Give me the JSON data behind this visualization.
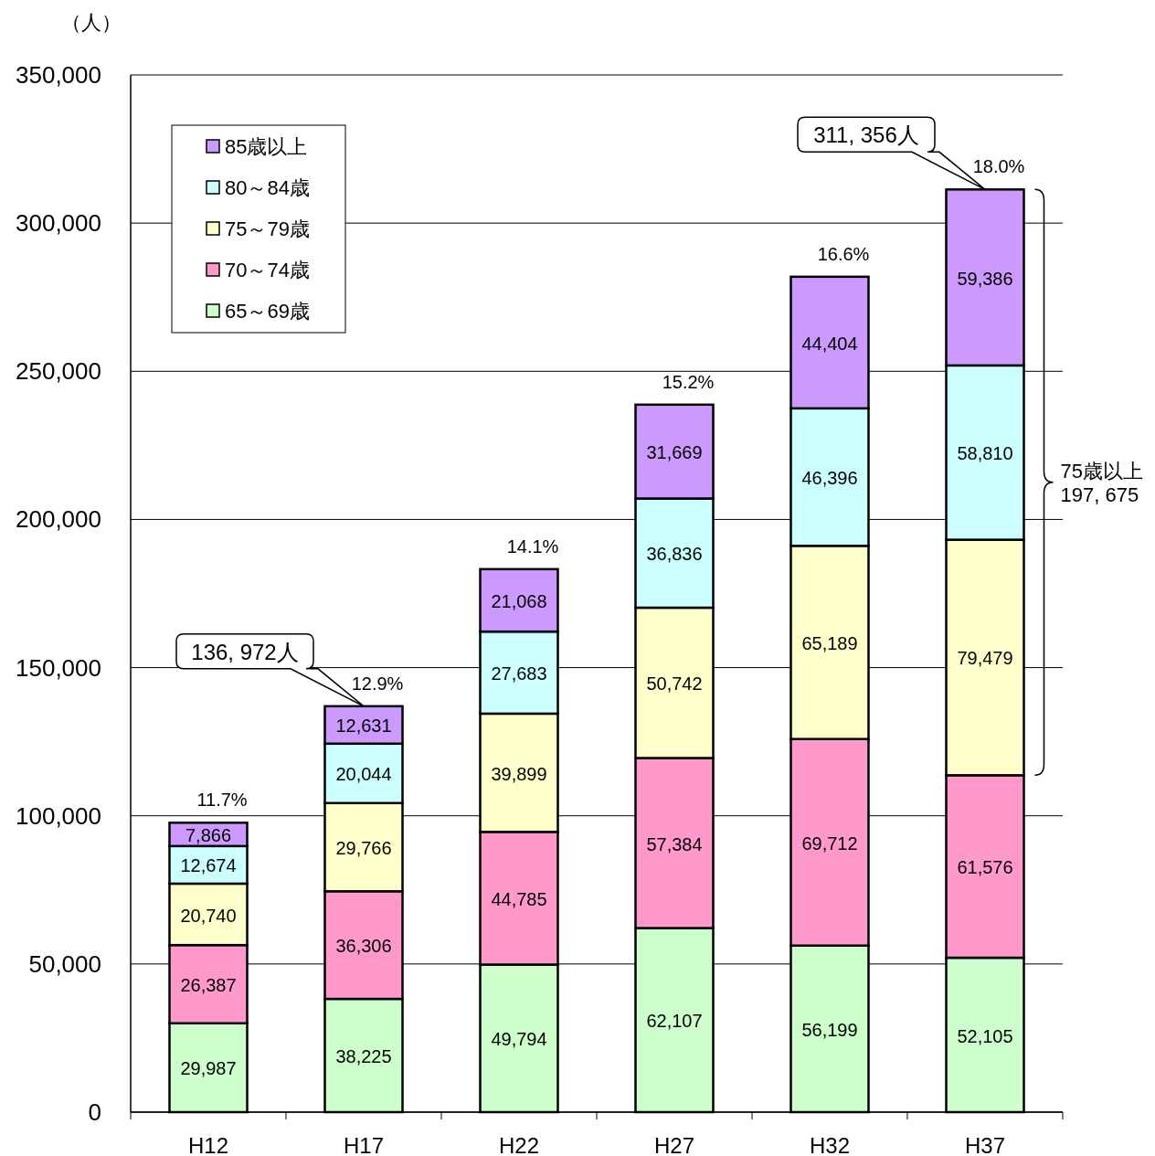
{
  "chart_data": {
    "type": "bar",
    "stacked": true,
    "ylabel": "（人）",
    "categories": [
      "H12",
      "H17",
      "H22",
      "H27",
      "H32",
      "H37"
    ],
    "series": [
      {
        "name": "65～69歳",
        "color": "#ccffcc",
        "values": [
          29987,
          38225,
          49794,
          62107,
          56199,
          52105
        ],
        "value_labels": [
          "29,987",
          "38,225",
          "49,794",
          "62,107",
          "56,199",
          "52,105"
        ]
      },
      {
        "name": "70～74歳",
        "color": "#ff99cc",
        "values": [
          26387,
          36306,
          44785,
          57384,
          69712,
          61576
        ],
        "value_labels": [
          "26,387",
          "36,306",
          "44,785",
          "57,384",
          "69,712",
          "61,576"
        ]
      },
      {
        "name": "75～79歳",
        "color": "#ffffcc",
        "values": [
          20740,
          29766,
          39899,
          50742,
          65189,
          79479
        ],
        "value_labels": [
          "20,740",
          "29,766",
          "39,899",
          "50,742",
          "65,189",
          "79,479"
        ]
      },
      {
        "name": "80～84歳",
        "color": "#ccffff",
        "values": [
          12674,
          20044,
          27683,
          36836,
          46396,
          58810
        ],
        "value_labels": [
          "12,674",
          "20,044",
          "27,683",
          "36,836",
          "46,396",
          "58,810"
        ]
      },
      {
        "name": "85歳以上",
        "color": "#cc99ff",
        "values": [
          7866,
          12631,
          21068,
          31669,
          44404,
          59386
        ],
        "value_labels": [
          "7,866",
          "12,631",
          "21,068",
          "31,669",
          "44,404",
          "59,386"
        ]
      }
    ],
    "ylim": [
      0,
      350000
    ],
    "yticks": [
      {
        "value": 0,
        "label": "0"
      },
      {
        "value": 50000,
        "label": "50,000"
      },
      {
        "value": 100000,
        "label": "100,000"
      },
      {
        "value": 150000,
        "label": "150,000"
      },
      {
        "value": 200000,
        "label": "200,000"
      },
      {
        "value": 250000,
        "label": "250,000"
      },
      {
        "value": 300000,
        "label": "300,000"
      },
      {
        "value": 350000,
        "label": "350,000"
      }
    ],
    "grid": "y",
    "legend": "top left",
    "annotations": [
      {
        "text": "11.7%",
        "x": "H12",
        "y": 97654
      },
      {
        "text": "12.9%",
        "x": "H17",
        "y": 136972
      },
      {
        "text": "14.1%",
        "x": "H22",
        "y": 183229
      },
      {
        "text": "15.2%",
        "x": "H27",
        "y": 238738
      },
      {
        "text": "16.6%",
        "x": "H32",
        "y": 281900
      },
      {
        "text": "18.0%",
        "x": "H37",
        "y": 311356
      },
      "136, 972人",
      "311, 356人",
      "75歳以上\n197, 675"
    ]
  }
}
